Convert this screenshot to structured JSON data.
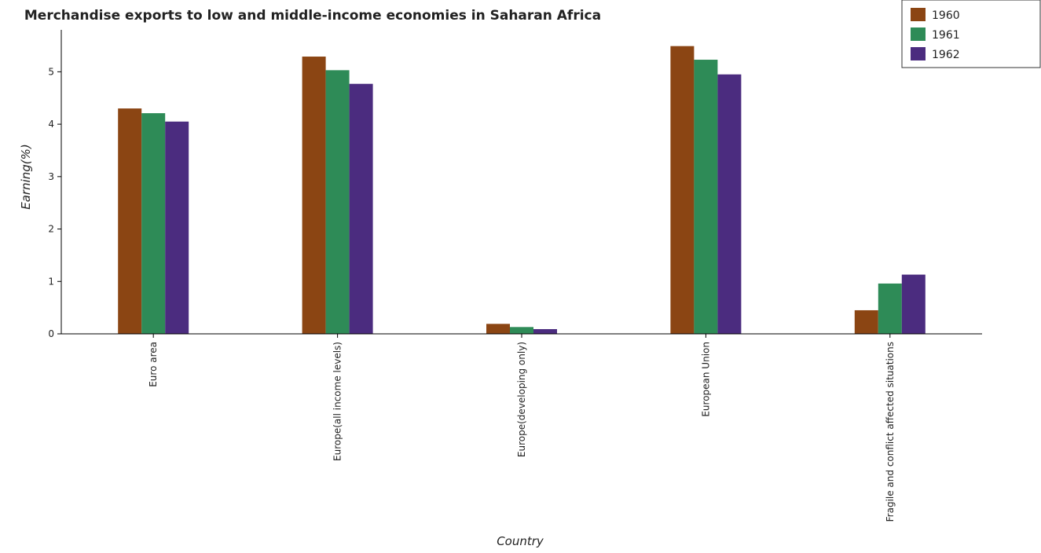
{
  "chart_data": {
    "type": "bar",
    "title": "Merchandise exports to low and middle-income economies in Saharan Africa",
    "xlabel": "Country",
    "ylabel": "Earning(%)",
    "categories": [
      "Euro area",
      "Europe(all income levels)",
      "Europe(developing only)",
      "European Union",
      "Fragile and conflict affected situations"
    ],
    "series": [
      {
        "name": "1960",
        "color": "#8B4513",
        "values": [
          4.3,
          5.29,
          0.19,
          5.49,
          0.45
        ]
      },
      {
        "name": "1961",
        "color": "#2E8B57",
        "values": [
          4.21,
          5.03,
          0.13,
          5.23,
          0.96
        ]
      },
      {
        "name": "1962",
        "color": "#4B2C7F",
        "values": [
          4.05,
          4.77,
          0.09,
          4.95,
          1.13
        ]
      }
    ],
    "ylim": [
      0,
      5.8
    ],
    "yticks": [
      0,
      1,
      2,
      3,
      4,
      5
    ],
    "grid": false,
    "legend_position": "top-right"
  }
}
